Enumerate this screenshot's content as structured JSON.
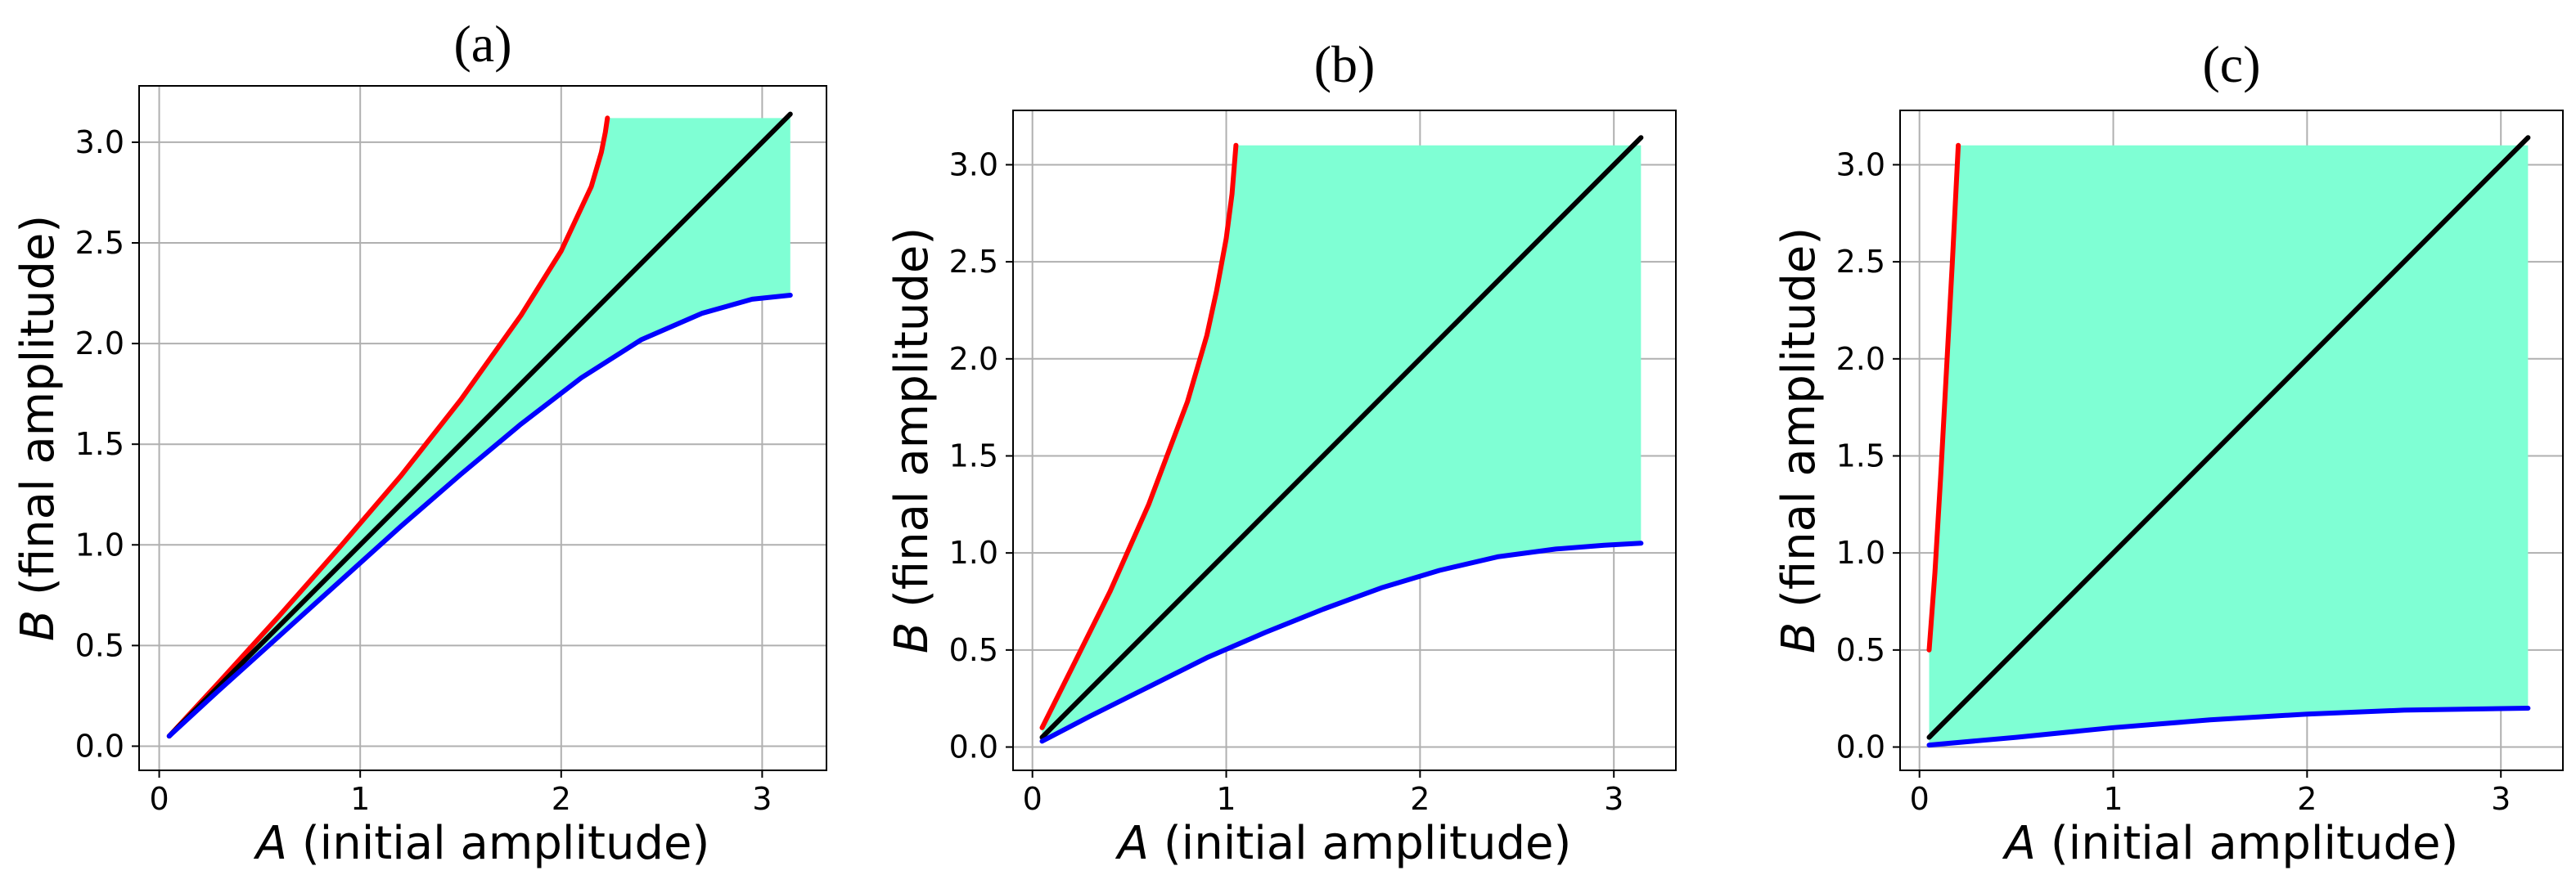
{
  "figure": {
    "background": "#ffffff"
  },
  "chart_data": [
    {
      "type": "line",
      "title": "(a)",
      "xlabel_var": "A",
      "xlabel_rest": " (initial amplitude)",
      "ylabel_var": "B",
      "ylabel_rest": " (final amplitude)",
      "xlim": [
        -0.1,
        3.32
      ],
      "ylim": [
        -0.12,
        3.28
      ],
      "xticks": [
        0,
        1,
        2,
        3
      ],
      "yticks": [
        0.0,
        0.5,
        1.0,
        1.5,
        2.0,
        2.5,
        3.0
      ],
      "grid": true,
      "region_color": "#7fffd4",
      "series": [
        {
          "color": "#ff0000",
          "x": [
            0.05,
            0.3,
            0.6,
            0.9,
            1.2,
            1.5,
            1.8,
            2.0,
            2.15,
            2.2,
            2.22,
            2.23
          ],
          "y": [
            0.05,
            0.32,
            0.65,
            0.99,
            1.34,
            1.72,
            2.14,
            2.46,
            2.78,
            2.95,
            3.05,
            3.12
          ]
        },
        {
          "color": "#000000",
          "x": [
            0.05,
            3.14
          ],
          "y": [
            0.05,
            3.14
          ]
        },
        {
          "color": "#0000ff",
          "x": [
            0.05,
            0.3,
            0.6,
            0.9,
            1.2,
            1.5,
            1.8,
            2.1,
            2.4,
            2.7,
            2.95,
            3.14
          ],
          "y": [
            0.05,
            0.28,
            0.55,
            0.82,
            1.09,
            1.35,
            1.6,
            1.83,
            2.02,
            2.15,
            2.22,
            2.24
          ]
        }
      ]
    },
    {
      "type": "line",
      "title": "(b)",
      "xlabel_var": "A",
      "xlabel_rest": " (initial amplitude)",
      "ylabel_var": "B",
      "ylabel_rest": " (final amplitude)",
      "xlim": [
        -0.1,
        3.32
      ],
      "ylim": [
        -0.12,
        3.28
      ],
      "xticks": [
        0,
        1,
        2,
        3
      ],
      "yticks": [
        0.0,
        0.5,
        1.0,
        1.5,
        2.0,
        2.5,
        3.0
      ],
      "grid": true,
      "region_color": "#7fffd4",
      "series": [
        {
          "color": "#ff0000",
          "x": [
            0.05,
            0.2,
            0.4,
            0.6,
            0.8,
            0.9,
            0.95,
            1.0,
            1.03,
            1.05
          ],
          "y": [
            0.1,
            0.4,
            0.8,
            1.25,
            1.78,
            2.12,
            2.35,
            2.62,
            2.85,
            3.1
          ]
        },
        {
          "color": "#000000",
          "x": [
            0.05,
            3.14
          ],
          "y": [
            0.05,
            3.14
          ]
        },
        {
          "color": "#0000ff",
          "x": [
            0.05,
            0.3,
            0.6,
            0.9,
            1.2,
            1.5,
            1.8,
            2.1,
            2.4,
            2.7,
            2.95,
            3.14
          ],
          "y": [
            0.03,
            0.16,
            0.31,
            0.46,
            0.59,
            0.71,
            0.82,
            0.91,
            0.98,
            1.02,
            1.04,
            1.05
          ]
        }
      ]
    },
    {
      "type": "line",
      "title": "(c)",
      "xlabel_var": "A",
      "xlabel_rest": " (initial amplitude)",
      "ylabel_var": "B",
      "ylabel_rest": " (final amplitude)",
      "xlim": [
        -0.1,
        3.32
      ],
      "ylim": [
        -0.12,
        3.28
      ],
      "xticks": [
        0,
        1,
        2,
        3
      ],
      "yticks": [
        0.0,
        0.5,
        1.0,
        1.5,
        2.0,
        2.5,
        3.0
      ],
      "grid": true,
      "region_color": "#7fffd4",
      "series": [
        {
          "color": "#ff0000",
          "x": [
            0.05,
            0.08,
            0.11,
            0.14,
            0.17,
            0.2
          ],
          "y": [
            0.5,
            0.9,
            1.4,
            1.95,
            2.5,
            3.1
          ]
        },
        {
          "color": "#000000",
          "x": [
            0.05,
            3.14
          ],
          "y": [
            0.05,
            3.14
          ]
        },
        {
          "color": "#0000ff",
          "x": [
            0.05,
            0.5,
            1.0,
            1.5,
            2.0,
            2.5,
            3.14
          ],
          "y": [
            0.01,
            0.05,
            0.1,
            0.14,
            0.17,
            0.19,
            0.2
          ]
        }
      ]
    }
  ]
}
